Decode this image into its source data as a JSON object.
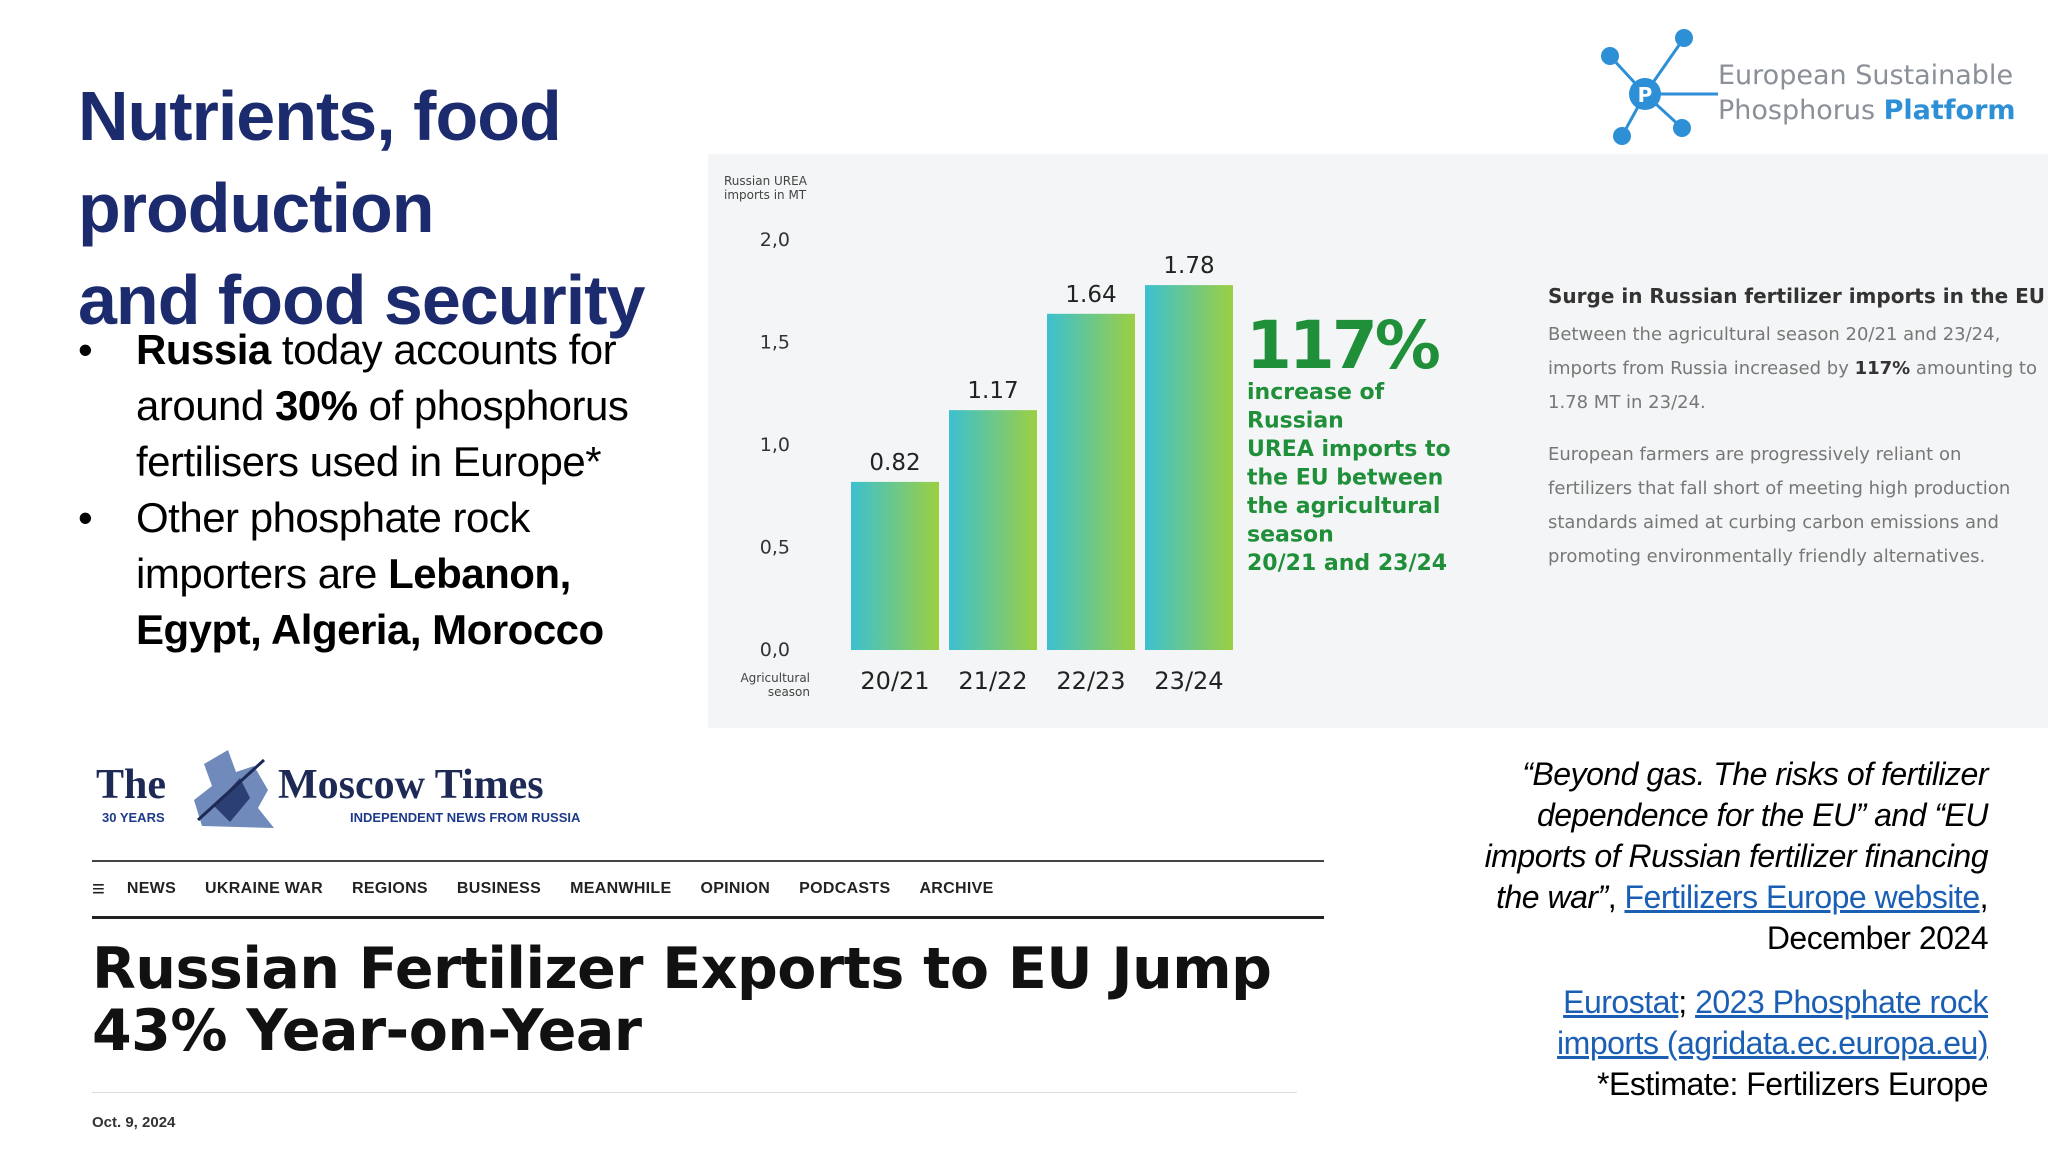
{
  "title": {
    "line1": "Nutrients, food production",
    "line2": "and food security"
  },
  "logo": {
    "line1": "European Sustainable",
    "line2_a": "Phosphorus ",
    "line2_b": "Platform",
    "icon_letter": "P"
  },
  "bullets": [
    {
      "parts": [
        "Russia",
        " today accounts for around ",
        "30%",
        " of phosphorus fertilisers used in Europe*"
      ]
    },
    {
      "parts": [
        "Other phosphate rock importers are ",
        "Lebanon, Egypt, Algeria, Morocco"
      ]
    }
  ],
  "bullet_marker": "•",
  "chart_data": {
    "type": "bar",
    "ylabel": "Russian UREA imports in MT",
    "xlabel": "Agricultural season",
    "categories": [
      "20/21",
      "21/22",
      "22/23",
      "23/24"
    ],
    "values": [
      0.82,
      1.17,
      1.64,
      1.78
    ],
    "value_labels": [
      "0.82",
      "1.17",
      "1.64",
      "1.78"
    ],
    "ylim": [
      0,
      2.0
    ],
    "yticks": [
      "2,0",
      "1,5",
      "1,0",
      "0,5",
      "0,0"
    ],
    "grid": false,
    "bar_gradient": [
      "#3cc0d0",
      "#9ccf42"
    ],
    "annotation": {
      "big": "117%",
      "lines": [
        "increase of",
        "Russian",
        "UREA imports to",
        "the EU between",
        "the agricultural",
        "season",
        "20/21 and 23/24"
      ],
      "color": "#1f8f3a"
    }
  },
  "surge": {
    "title": "Surge in Russian fertilizer imports in the EU",
    "p1_before": "Between the agricultural season 20/21 and 23/24, imports from Russia increased by ",
    "p1_bold": "117%",
    "p1_after": " amounting to 1.78 MT in 23/24.",
    "p2": "European farmers are progressively reliant on fertilizers that fall short of meeting high production standards aimed at curbing carbon emissions and promoting environmentally friendly alternatives."
  },
  "moscow_times": {
    "the": "The",
    "name": "Moscow Times",
    "years": "30 YEARS",
    "tagline": "INDEPENDENT NEWS FROM RUSSIA",
    "menu_icon": "≡",
    "nav": [
      "NEWS",
      "UKRAINE WAR",
      "REGIONS",
      "BUSINESS",
      "MEANWHILE",
      "OPINION",
      "PODCASTS",
      "ARCHIVE"
    ],
    "headline_line1": "Russian Fertilizer Exports to EU Jump",
    "headline_line2": "43% Year-on-Year",
    "date": "Oct. 9, 2024"
  },
  "citation": {
    "quote": "“Beyond gas. The risks of fertilizer dependence for the EU” and “EU imports of Russian fertilizer financing the war”",
    "sep": ", ",
    "link1": "Fertilizers Europe website",
    "tail": ", December 2024",
    "link2": "Eurostat",
    "sep2": "; ",
    "link3": "2023 Phosphate rock imports (agridata.ec.europa.eu)",
    "estimate": "*Estimate: Fertilizers Europe"
  },
  "colors": {
    "title": "#1c2a6e",
    "link": "#1a5fb4",
    "chart_panel": "#f4f5f6"
  }
}
